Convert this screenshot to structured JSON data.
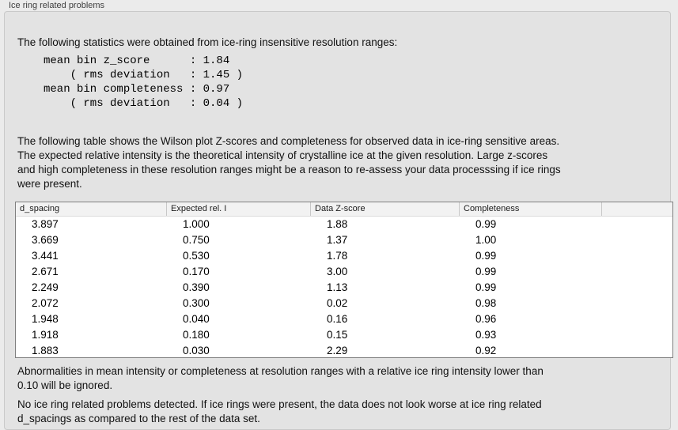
{
  "panel": {
    "title": "Ice ring related problems"
  },
  "stats": {
    "intro": "The following statistics were obtained from ice-ring insensitive resolution ranges:",
    "block": "mean bin z_score      : 1.84\n    ( rms deviation   : 1.45 )\nmean bin completeness : 0.97\n    ( rms deviation   : 0.04 )"
  },
  "table_description": "The following table shows the Wilson plot Z-scores and completeness for observed data in ice-ring sensitive areas.\nThe expected relative intensity is the theoretical intensity of crystalline ice at the given resolution. Large z-scores\nand high completeness in these resolution ranges might be a reason to re-assess your data processsing if ice rings\nwere present.",
  "table": {
    "columns": [
      "d_spacing",
      "Expected rel. I",
      "Data Z-score",
      "Completeness",
      ""
    ],
    "rows": [
      [
        "3.897",
        "1.000",
        "1.88",
        "0.99"
      ],
      [
        "3.669",
        "0.750",
        "1.37",
        "1.00"
      ],
      [
        "3.441",
        "0.530",
        "1.78",
        "0.99"
      ],
      [
        "2.671",
        "0.170",
        "3.00",
        "0.99"
      ],
      [
        "2.249",
        "0.390",
        "1.13",
        "0.99"
      ],
      [
        "2.072",
        "0.300",
        "0.02",
        "0.98"
      ],
      [
        "1.948",
        "0.040",
        "0.16",
        "0.96"
      ],
      [
        "1.918",
        "0.180",
        "0.15",
        "0.93"
      ],
      [
        "1.883",
        "0.030",
        "2.29",
        "0.92"
      ]
    ]
  },
  "notes": {
    "ignore_note": "Abnormalities in mean intensity or completeness at resolution ranges with a relative ice ring intensity lower than\n0.10 will be ignored.",
    "conclusion": "No ice ring related problems detected. If ice rings were present, the data does not look worse at ice ring related\nd_spacings as compared to the rest of the data set."
  },
  "colors": {
    "page_background": "#ebebeb",
    "panel_background": "#e3e3e3",
    "table_border": "#7f7f7f",
    "header_background": "#f2f2f2"
  }
}
